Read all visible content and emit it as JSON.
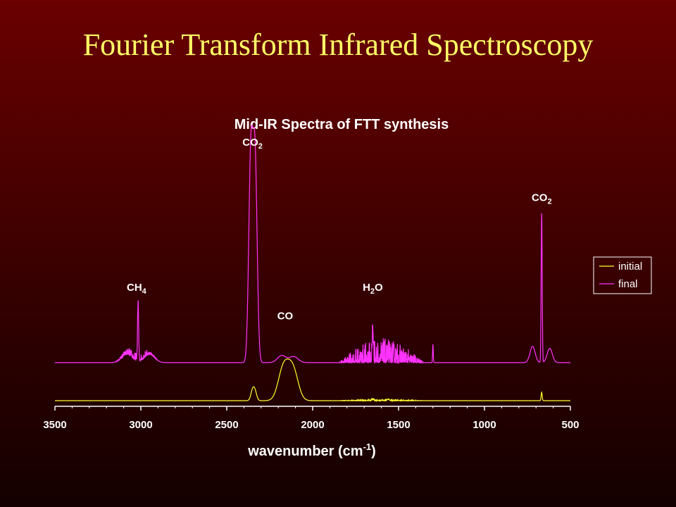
{
  "slide": {
    "title": "Fourier Transform Infrared Spectroscopy"
  },
  "chart_data": {
    "type": "line",
    "title": "Mid-IR Spectra of FTT synthesis",
    "xlabel": "wavenumber (cm",
    "xlabel_sup": "-1",
    "xlabel_end": ")",
    "xlim": [
      3500,
      500
    ],
    "xticks": [
      3500,
      3000,
      2500,
      2000,
      1500,
      1000,
      500
    ],
    "grid": false,
    "legend_position": "right",
    "colors": {
      "initial": "#ffff33",
      "final": "#ff33ff",
      "text": "#ffffff"
    },
    "series": [
      {
        "name": "initial",
        "baseline": 0.0,
        "peaks": [
          {
            "x": 2350,
            "h": 0.07,
            "w": 10
          },
          {
            "x": 2335,
            "h": 0.06,
            "w": 10
          },
          {
            "x": 2170,
            "h": 0.23,
            "w": 30
          },
          {
            "x": 2115,
            "h": 0.22,
            "w": 30
          },
          {
            "x": 1650,
            "h": 0.01,
            "w": 5
          },
          {
            "x": 1560,
            "h": 0.01,
            "w": 5
          },
          {
            "x": 667,
            "h": 0.06,
            "w": 3
          }
        ],
        "noise_regions": [
          {
            "from": 1850,
            "to": 1350,
            "amp": 0.01
          }
        ]
      },
      {
        "name": "final",
        "baseline": 0.0,
        "peaks": [
          {
            "x": 3016,
            "h": 0.29,
            "w": 3
          },
          {
            "x": 3080,
            "h": 0.04,
            "w": 30
          },
          {
            "x": 2950,
            "h": 0.04,
            "w": 30
          },
          {
            "x": 2360,
            "h": 1.0,
            "w": 12
          },
          {
            "x": 2335,
            "h": 0.98,
            "w": 12
          },
          {
            "x": 2180,
            "h": 0.035,
            "w": 25
          },
          {
            "x": 2110,
            "h": 0.03,
            "w": 25
          },
          {
            "x": 1650,
            "h": 0.16,
            "w": 3
          },
          {
            "x": 1300,
            "h": 0.09,
            "w": 2
          },
          {
            "x": 720,
            "h": 0.08,
            "w": 15
          },
          {
            "x": 667,
            "h": 0.73,
            "w": 3
          },
          {
            "x": 620,
            "h": 0.07,
            "w": 15
          }
        ],
        "noise_regions": [
          {
            "from": 3150,
            "to": 2900,
            "amp": 0.04
          },
          {
            "from": 1850,
            "to": 1350,
            "amp": 0.12
          }
        ]
      }
    ],
    "annotations": [
      {
        "base": "CO",
        "sub": "2",
        "x": 2350,
        "series": "final",
        "y": 1.0
      },
      {
        "base": "CO",
        "sub": "2",
        "x": 667,
        "series": "final",
        "y": 0.73
      },
      {
        "base": "CH",
        "sub": "4",
        "x": 3025,
        "series": "final",
        "y": 0.29
      },
      {
        "base": "H",
        "sub": "2",
        "rest": "O",
        "x": 1650,
        "series": "final",
        "y": 0.29
      },
      {
        "base": "CO",
        "sub": "",
        "x": 2160,
        "series": "final",
        "y": 0.15
      }
    ]
  }
}
